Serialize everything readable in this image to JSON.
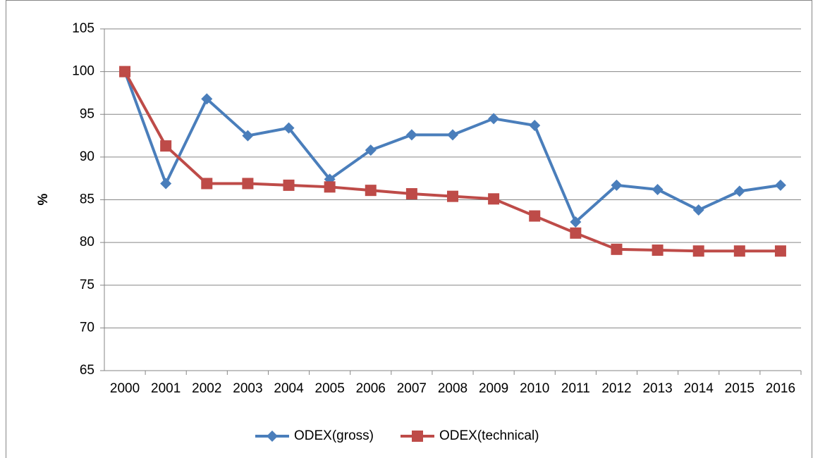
{
  "chart_data": {
    "type": "line",
    "y_label": "%",
    "categories": [
      "2000",
      "2001",
      "2002",
      "2003",
      "2004",
      "2005",
      "2006",
      "2007",
      "2008",
      "2009",
      "2010",
      "2011",
      "2012",
      "2013",
      "2014",
      "2015",
      "2016"
    ],
    "series": [
      {
        "name": "ODEX(gross)",
        "color": "#4a7ebb",
        "marker": "diamond",
        "values": [
          100,
          86.9,
          96.8,
          92.5,
          93.4,
          87.4,
          90.8,
          92.6,
          92.6,
          94.5,
          93.7,
          82.4,
          86.7,
          86.2,
          83.8,
          86.0,
          86.7
        ]
      },
      {
        "name": "ODEX(technical)",
        "color": "#be4b48",
        "marker": "square",
        "values": [
          100,
          91.3,
          86.9,
          86.9,
          86.7,
          86.5,
          86.1,
          85.7,
          85.4,
          85.1,
          83.1,
          81.1,
          79.2,
          79.1,
          79.0,
          79.0,
          79.0
        ]
      }
    ],
    "ylim": [
      65,
      105
    ],
    "yticks": [
      65,
      70,
      75,
      80,
      85,
      90,
      95,
      100,
      105
    ],
    "grid": true,
    "legend": "bottom"
  }
}
